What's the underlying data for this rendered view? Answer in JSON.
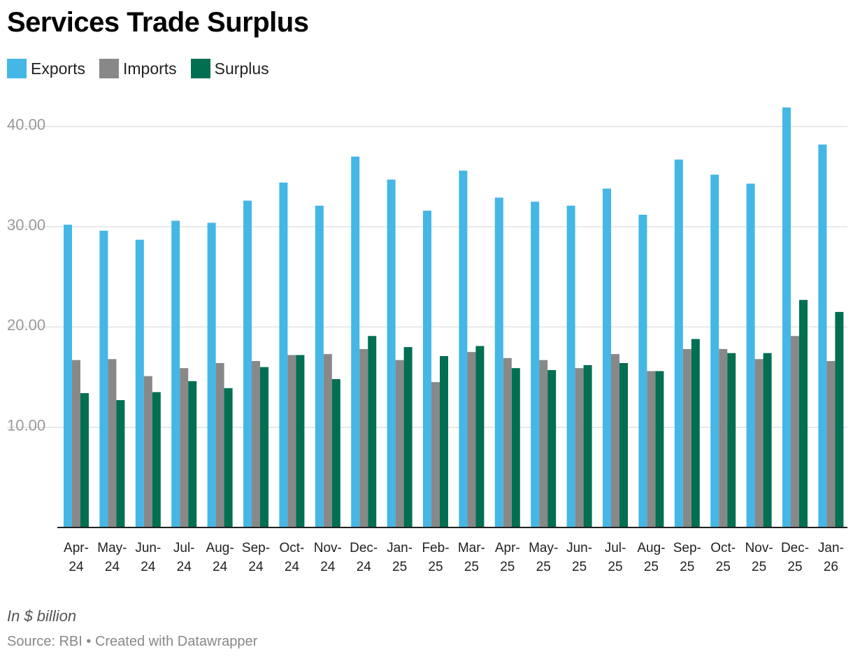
{
  "header": {
    "title": "Services Trade Surplus"
  },
  "legend": [
    {
      "label": "Exports",
      "color": "#44b7e6"
    },
    {
      "label": "Imports",
      "color": "#888888"
    },
    {
      "label": "Surplus",
      "color": "#006f52"
    }
  ],
  "footer": {
    "note": "In $ billion",
    "source": "Source: RBI • Created with Datawrapper"
  },
  "chart_data": {
    "type": "bar",
    "title": "Services Trade Surplus",
    "xlabel": "",
    "ylabel": "In $ billion",
    "ylim": [
      0,
      42
    ],
    "yticks": [
      10,
      20,
      30,
      40
    ],
    "ytick_labels": [
      "10.00",
      "20.00",
      "30.00",
      "40.00"
    ],
    "grid": true,
    "legend_position": "top-left",
    "categories": [
      [
        "Apr-",
        "24"
      ],
      [
        "May-",
        "24"
      ],
      [
        "Jun-",
        "24"
      ],
      [
        "Jul-",
        "24"
      ],
      [
        "Aug-",
        "24"
      ],
      [
        "Sep-",
        "24"
      ],
      [
        "Oct-",
        "24"
      ],
      [
        "Nov-",
        "24"
      ],
      [
        "Dec-",
        "24"
      ],
      [
        "Jan-",
        "25"
      ],
      [
        "Feb-",
        "25"
      ],
      [
        "Mar-",
        "25"
      ],
      [
        "Apr-",
        "25"
      ],
      [
        "May-",
        "25"
      ],
      [
        "Jun-",
        "25"
      ],
      [
        "Jul-",
        "25"
      ],
      [
        "Aug-",
        "25"
      ],
      [
        "Sep-",
        "25"
      ],
      [
        "Oct-",
        "25"
      ],
      [
        "Nov-",
        "25"
      ],
      [
        "Dec-",
        "25"
      ],
      [
        "Jan-",
        "26"
      ]
    ],
    "series": [
      {
        "name": "Exports",
        "color": "#44b7e6",
        "values": [
          30.2,
          29.6,
          28.7,
          30.6,
          30.4,
          32.6,
          34.4,
          32.1,
          37.0,
          34.7,
          31.6,
          35.6,
          32.9,
          32.5,
          32.1,
          33.8,
          31.2,
          36.7,
          35.2,
          34.3,
          41.9,
          38.2
        ]
      },
      {
        "name": "Imports",
        "color": "#888888",
        "values": [
          16.7,
          16.8,
          15.1,
          15.9,
          16.4,
          16.6,
          17.2,
          17.3,
          17.8,
          16.7,
          14.5,
          17.5,
          16.9,
          16.7,
          15.9,
          17.3,
          15.6,
          17.8,
          17.8,
          16.8,
          19.1,
          16.6
        ]
      },
      {
        "name": "Surplus",
        "color": "#006f52",
        "values": [
          13.4,
          12.7,
          13.5,
          14.6,
          13.9,
          16.0,
          17.2,
          14.8,
          19.1,
          18.0,
          17.1,
          18.1,
          15.9,
          15.7,
          16.2,
          16.4,
          15.6,
          18.8,
          17.4,
          17.4,
          22.7,
          21.5
        ]
      }
    ]
  }
}
